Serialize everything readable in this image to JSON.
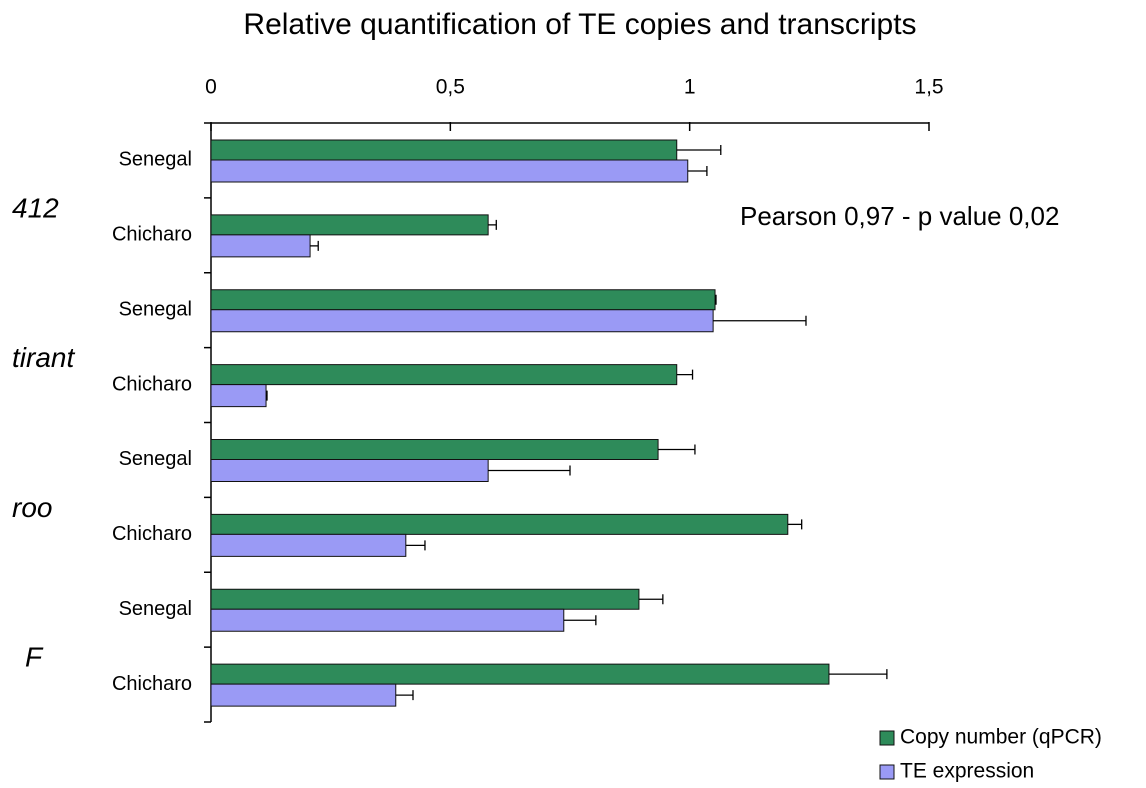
{
  "chart_data": {
    "type": "bar",
    "orientation": "horizontal",
    "title": "Relative quantification of TE copies and transcripts",
    "annotation": "Pearson 0,97 - p value 0,02",
    "groups": [
      "412",
      "tirant",
      "roo",
      "F"
    ],
    "categories": [
      "Senegal",
      "Chicharo",
      "Senegal",
      "Chicharo",
      "Senegal",
      "Chicharo",
      "Senegal",
      "Chicharo"
    ],
    "series": [
      {
        "name": "Copy number (qPCR)",
        "color": "#2e8b5a",
        "values": [
          0.973,
          0.579,
          1.053,
          0.973,
          0.934,
          1.205,
          0.894,
          1.291
        ],
        "errors": [
          0.092,
          0.017,
          0.002,
          0.033,
          0.077,
          0.029,
          0.05,
          0.121
        ]
      },
      {
        "name": "TE expression",
        "color": "#9a9af5",
        "values": [
          0.996,
          0.207,
          1.049,
          0.115,
          0.579,
          0.407,
          0.737,
          0.386
        ],
        "errors": [
          0.04,
          0.017,
          0.194,
          0.002,
          0.171,
          0.04,
          0.067,
          0.036
        ]
      }
    ],
    "xlim": [
      0,
      1.5
    ],
    "xticks": [
      0,
      {
        "value": 0.5,
        "label": "0,5"
      },
      1,
      {
        "value": 1.5,
        "label": "1,5"
      }
    ],
    "legend": "bottom-right"
  }
}
